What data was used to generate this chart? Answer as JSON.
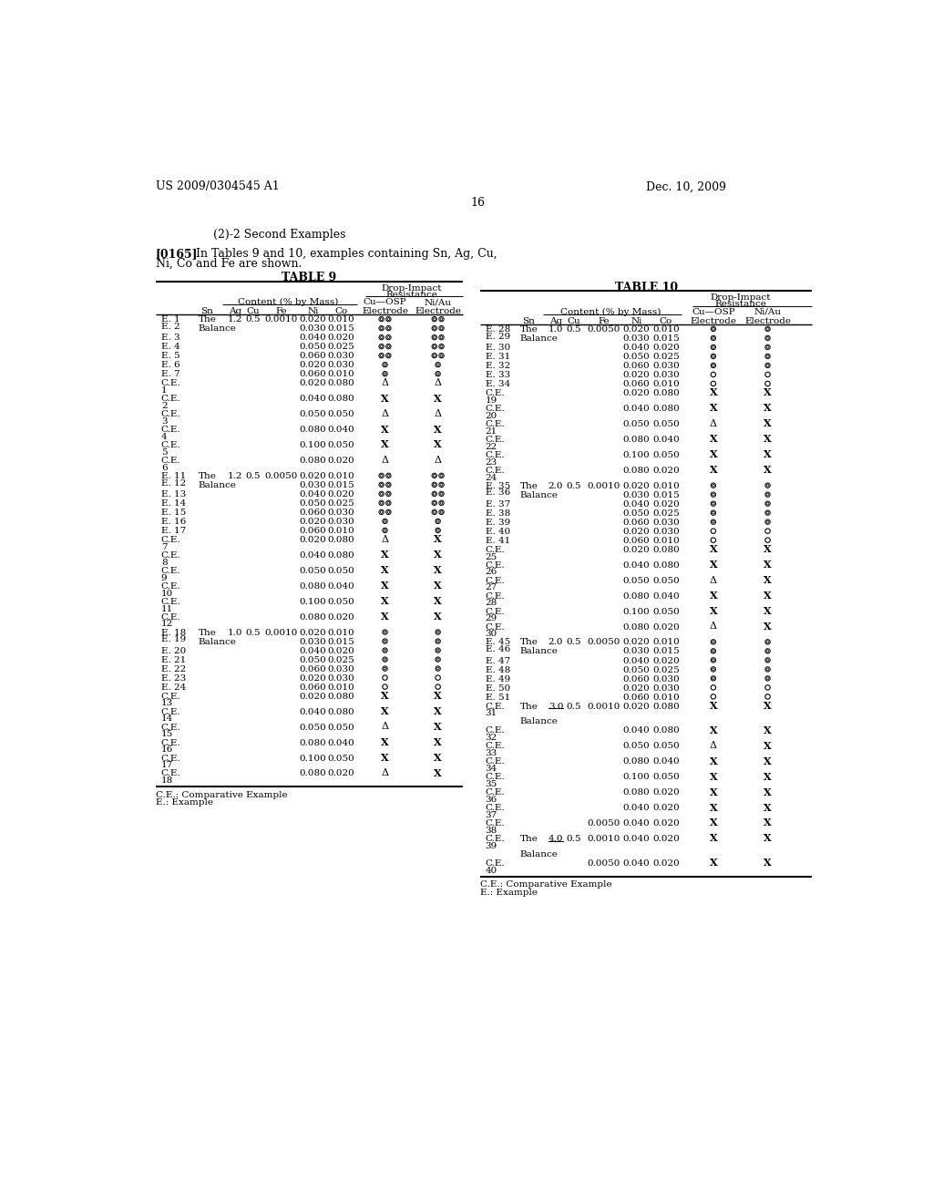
{
  "patent_number": "US 2009/0304545 A1",
  "date": "Dec. 10, 2009",
  "page_number": "16",
  "section_title": "(2)-2 Second Examples",
  "paragraph_num": "[0165]",
  "paragraph_body": "In Tables 9 and 10, examples containing Sn, Ag, Cu,",
  "paragraph_body2": "Ni, Co and Fe are shown.",
  "table9_title": "TABLE 9",
  "table10_title": "TABLE 10",
  "footer": "C.E.: Comparative Example\nE.: Example",
  "bg_color": "#ffffff",
  "text_color": "#000000"
}
